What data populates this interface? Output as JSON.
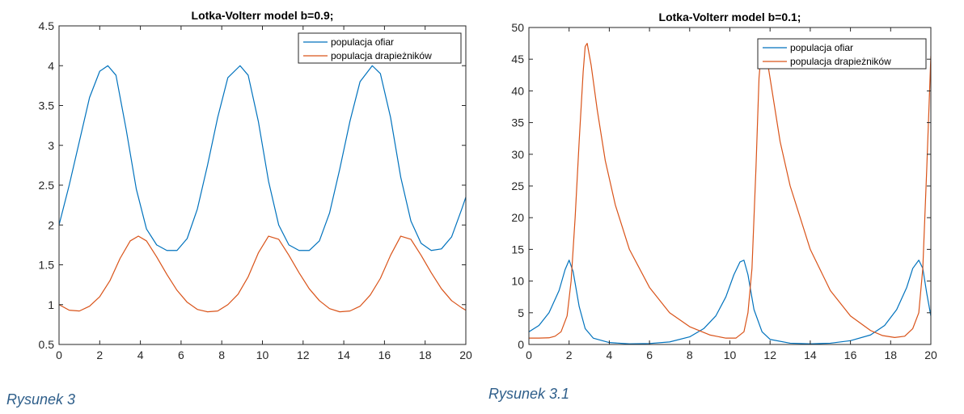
{
  "chart_data": [
    {
      "type": "line",
      "title": "Lotka-Volterr model b=0.9;",
      "xlabel": "",
      "ylabel": "",
      "xlim": [
        0,
        20
      ],
      "ylim": [
        0.5,
        4.5
      ],
      "xticks": [
        0,
        2,
        4,
        6,
        8,
        10,
        12,
        14,
        16,
        18,
        20
      ],
      "yticks": [
        0.5,
        1,
        1.5,
        2,
        2.5,
        3,
        3.5,
        4,
        4.5
      ],
      "legend_position": "top-right",
      "series": [
        {
          "name": "populacja ofiar",
          "color": "#0072bd",
          "x": [
            0,
            0.5,
            1,
            1.5,
            2,
            2.4,
            2.8,
            3.3,
            3.8,
            4.3,
            4.8,
            5.3,
            5.8,
            6.3,
            6.8,
            7.3,
            7.8,
            8.3,
            8.9,
            9.3,
            9.8,
            10.3,
            10.8,
            11.3,
            11.8,
            12.3,
            12.8,
            13.3,
            13.8,
            14.3,
            14.8,
            15.4,
            15.8,
            16.3,
            16.8,
            17.3,
            17.8,
            18.3,
            18.8,
            19.3,
            19.8,
            20
          ],
          "y": [
            2.0,
            2.5,
            3.05,
            3.6,
            3.93,
            4.0,
            3.88,
            3.2,
            2.45,
            1.95,
            1.75,
            1.68,
            1.68,
            1.83,
            2.2,
            2.75,
            3.35,
            3.85,
            4.0,
            3.88,
            3.3,
            2.55,
            2.0,
            1.75,
            1.68,
            1.68,
            1.8,
            2.15,
            2.7,
            3.3,
            3.8,
            4.0,
            3.9,
            3.35,
            2.6,
            2.05,
            1.77,
            1.68,
            1.7,
            1.85,
            2.2,
            2.35
          ]
        },
        {
          "name": "populacja drapieżników",
          "color": "#d95319",
          "x": [
            0,
            0.5,
            1,
            1.5,
            2,
            2.5,
            3,
            3.5,
            3.9,
            4.3,
            4.8,
            5.3,
            5.8,
            6.3,
            6.8,
            7.3,
            7.8,
            8.3,
            8.8,
            9.3,
            9.8,
            10.3,
            10.8,
            11.3,
            11.8,
            12.3,
            12.8,
            13.3,
            13.8,
            14.3,
            14.8,
            15.3,
            15.8,
            16.3,
            16.8,
            17.3,
            17.8,
            18.3,
            18.8,
            19.3,
            19.8,
            20
          ],
          "y": [
            1.0,
            0.93,
            0.92,
            0.98,
            1.1,
            1.3,
            1.58,
            1.8,
            1.86,
            1.8,
            1.6,
            1.38,
            1.18,
            1.03,
            0.94,
            0.91,
            0.92,
            1.0,
            1.13,
            1.35,
            1.65,
            1.86,
            1.82,
            1.62,
            1.4,
            1.2,
            1.05,
            0.95,
            0.91,
            0.92,
            0.98,
            1.12,
            1.33,
            1.62,
            1.86,
            1.82,
            1.62,
            1.4,
            1.2,
            1.05,
            0.96,
            0.93
          ]
        }
      ]
    },
    {
      "type": "line",
      "title": "Lotka-Volterr model b=0.1;",
      "xlabel": "",
      "ylabel": "",
      "xlim": [
        0,
        20
      ],
      "ylim": [
        0,
        50
      ],
      "xticks": [
        0,
        2,
        4,
        6,
        8,
        10,
        12,
        14,
        16,
        18,
        20
      ],
      "yticks": [
        0,
        5,
        10,
        15,
        20,
        25,
        30,
        35,
        40,
        45,
        50
      ],
      "legend_position": "top-right",
      "series": [
        {
          "name": "populacja ofiar",
          "color": "#0072bd",
          "x": [
            0,
            0.5,
            1,
            1.5,
            1.8,
            2.0,
            2.2,
            2.5,
            2.8,
            3.2,
            4,
            5,
            6,
            7,
            8,
            8.7,
            9.3,
            9.8,
            10.2,
            10.5,
            10.7,
            10.9,
            11.2,
            11.6,
            12,
            13,
            14,
            15,
            16,
            17,
            17.7,
            18.3,
            18.8,
            19.1,
            19.4,
            19.6,
            19.8,
            20
          ],
          "y": [
            2.0,
            3.0,
            5.0,
            8.5,
            11.8,
            13.3,
            11.5,
            6.0,
            2.5,
            1.0,
            0.3,
            0.1,
            0.15,
            0.4,
            1.2,
            2.5,
            4.5,
            7.5,
            11.0,
            13.0,
            13.3,
            11.0,
            5.5,
            2.0,
            0.8,
            0.2,
            0.1,
            0.2,
            0.6,
            1.5,
            3.0,
            5.5,
            9.0,
            12.0,
            13.3,
            12.0,
            8.0,
            4.5
          ]
        },
        {
          "name": "populacja drapieżników",
          "color": "#d95319",
          "x": [
            0,
            0.5,
            1,
            1.3,
            1.6,
            1.9,
            2.1,
            2.3,
            2.5,
            2.7,
            2.8,
            2.9,
            3.1,
            3.4,
            3.8,
            4.3,
            5,
            6,
            7,
            8,
            9,
            9.8,
            10.3,
            10.7,
            10.9,
            11.1,
            11.3,
            11.45,
            11.6,
            11.8,
            12.1,
            12.5,
            13,
            14,
            15,
            16,
            17,
            17.6,
            18.2,
            18.7,
            19.1,
            19.4,
            19.6,
            19.8,
            20
          ],
          "y": [
            1.0,
            1.0,
            1.05,
            1.3,
            2.0,
            4.5,
            10.0,
            20.0,
            32.0,
            43.0,
            47.0,
            47.5,
            44.0,
            37.0,
            29.0,
            22.0,
            15.0,
            9.0,
            5.0,
            2.8,
            1.5,
            1.0,
            1.0,
            2.0,
            5.0,
            12.0,
            28.0,
            42.0,
            47.8,
            46.0,
            40.0,
            32.0,
            25.0,
            15.0,
            8.5,
            4.5,
            2.2,
            1.4,
            1.1,
            1.3,
            2.5,
            5.0,
            12.0,
            28.0,
            45.5
          ]
        }
      ]
    }
  ],
  "captions": {
    "left": "Rysunek 3",
    "right": "Rysunek 3.1"
  }
}
